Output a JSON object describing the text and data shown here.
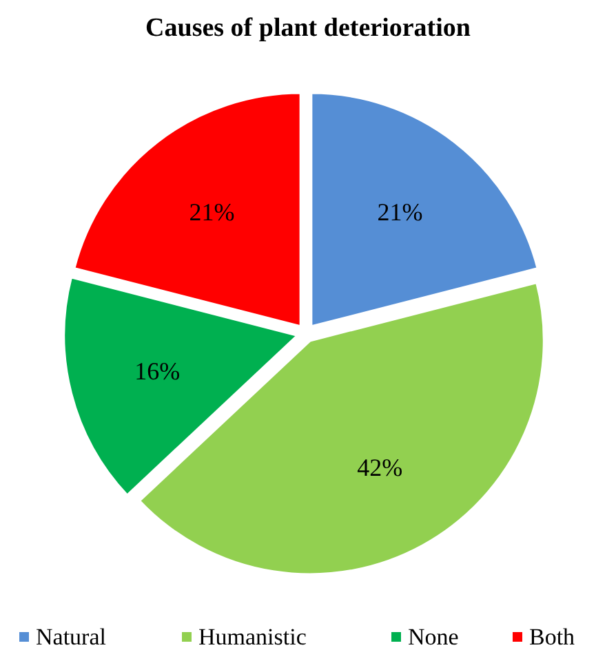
{
  "chart_data": {
    "type": "pie",
    "title": "Causes of plant deterioration",
    "categories": [
      "Natural",
      "Humanistic",
      "None",
      "Both"
    ],
    "values": [
      21,
      42,
      16,
      21
    ],
    "value_labels": [
      "21%",
      "42%",
      "16%",
      "21%"
    ],
    "colors": [
      "#558ed5",
      "#92d050",
      "#00b050",
      "#ff0000"
    ],
    "legend": "bottom"
  }
}
